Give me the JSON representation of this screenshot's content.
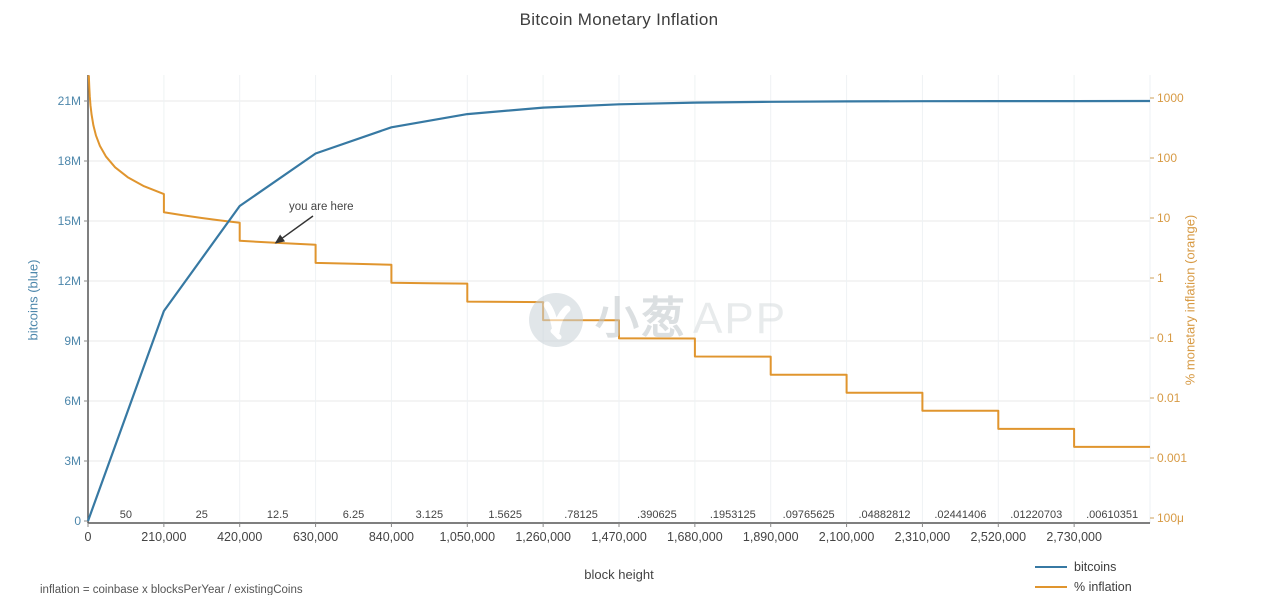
{
  "formula_note": "inflation = coinbase x blocksPerYear / existingCoins",
  "watermark": {
    "cn": "小葱",
    "latin": "APP"
  },
  "annotation": {
    "text": "you are here",
    "points_to_block": 520000,
    "points_to_pct": 3.86
  },
  "chart_data": {
    "type": "line",
    "title": "Bitcoin Monetary Inflation",
    "xlabel": "block height",
    "legend_position": "bottom-right",
    "grid": true,
    "halving_interval_blocks": 210000,
    "x_axis": {
      "range_blocks": [
        0,
        2940000
      ],
      "tick_blocks": [
        0,
        210000,
        420000,
        630000,
        840000,
        1050000,
        1260000,
        1470000,
        1680000,
        1890000,
        2100000,
        2310000,
        2520000,
        2730000
      ],
      "tick_labels": [
        "0",
        "210,000",
        "420,000",
        "630,000",
        "840,000",
        "1,050,000",
        "1,260,000",
        "1,470,000",
        "1,680,000",
        "1,890,000",
        "2,100,000",
        "2,310,000",
        "2,520,000",
        "2,730,000"
      ]
    },
    "era_reward_labels": [
      "50",
      "25",
      "12.5",
      "6.25",
      "3.125",
      "1.5625",
      ".78125",
      ".390625",
      ".1953125",
      ".09765625",
      ".04882812",
      ".02441406",
      ".01220703",
      ".00610351"
    ],
    "y_left": {
      "label": "bitcoins (blue)",
      "scale": "linear",
      "tick_values_millions": [
        0,
        3,
        6,
        9,
        12,
        15,
        18,
        21
      ],
      "tick_labels": [
        "0",
        "3M",
        "6M",
        "9M",
        "12M",
        "15M",
        "18M",
        "21M"
      ],
      "line_color": "#3779a3",
      "tick_label_color": "#4d87ab"
    },
    "y_right": {
      "label": "% monetary inflation (orange)",
      "scale": "log",
      "tick_values_percent": [
        1000,
        100,
        10,
        1,
        0.1,
        0.01,
        0.001,
        0.0001
      ],
      "tick_labels": [
        "1000",
        "100",
        "10",
        "1",
        "0.1",
        "0.01",
        "0.001",
        "100μ"
      ],
      "line_color": "#e0952e",
      "tick_label_color": "#d79a44"
    },
    "series": [
      {
        "name": "bitcoins",
        "axis": "left",
        "color": "#3779a3",
        "points_block_millionBTC": [
          [
            0,
            0
          ],
          [
            210000,
            10.5
          ],
          [
            420000,
            15.75
          ],
          [
            630000,
            18.375
          ],
          [
            840000,
            19.6875
          ],
          [
            1050000,
            20.34375
          ],
          [
            1260000,
            20.671875
          ],
          [
            1470000,
            20.8359375
          ],
          [
            1680000,
            20.91796875
          ],
          [
            1890000,
            20.958984
          ],
          [
            2100000,
            20.979492
          ],
          [
            2310000,
            20.989746
          ],
          [
            2520000,
            20.994873
          ],
          [
            2730000,
            20.997437
          ],
          [
            2940000,
            20.998718
          ]
        ]
      },
      {
        "name": "% inflation",
        "axis": "right",
        "color": "#e0952e",
        "eras_points_block_pct": [
          [
            [
              2200,
              2389
            ],
            [
              3500,
              1502
            ],
            [
              5000,
              1051
            ],
            [
              7000,
              751
            ],
            [
              10000,
              526
            ],
            [
              15000,
              350
            ],
            [
              22000,
              239
            ],
            [
              33000,
              159
            ],
            [
              50000,
              105.1
            ],
            [
              75000,
              70.1
            ],
            [
              110000,
              47.8
            ],
            [
              155000,
              33.9
            ],
            [
              210000,
              25.03
            ]
          ],
          [
            [
              210000,
              12.514
            ],
            [
              262500,
              11.12
            ],
            [
              315000,
              10.011
            ],
            [
              367500,
              9.1
            ],
            [
              420000,
              8.343
            ]
          ],
          [
            [
              420000,
              4.171
            ],
            [
              525000,
              3.851
            ],
            [
              630000,
              3.576
            ]
          ],
          [
            [
              630000,
              1.788
            ],
            [
              735000,
              1.727
            ],
            [
              840000,
              1.669
            ]
          ],
          [
            [
              840000,
              0.8343
            ],
            [
              945000,
              0.8205
            ],
            [
              1050000,
              0.8074
            ]
          ],
          [
            [
              1050000,
              0.4037
            ],
            [
              1260000,
              0.3973
            ]
          ],
          [
            [
              1260000,
              0.19864
            ],
            [
              1470000,
              0.19707
            ]
          ],
          [
            [
              1470000,
              0.098537
            ],
            [
              1680000,
              0.098151
            ]
          ],
          [
            [
              1680000,
              0.049079
            ],
            [
              1890000,
              0.048983
            ]
          ],
          [
            [
              1890000,
              0.02449
            ],
            [
              2100000,
              0.024466
            ]
          ],
          [
            [
              2100000,
              0.012233
            ],
            [
              2310000,
              0.012227
            ]
          ],
          [
            [
              2310000,
              0.0061158
            ],
            [
              2520000,
              0.0061143
            ]
          ],
          [
            [
              2520000,
              0.0030575
            ],
            [
              2730000,
              0.0030571
            ]
          ],
          [
            [
              2730000,
              0.0015287
            ],
            [
              2940000,
              0.0015286
            ]
          ]
        ]
      }
    ],
    "legend": [
      {
        "label": "bitcoins",
        "color": "#3779a3"
      },
      {
        "label": "% inflation",
        "color": "#e0952e"
      }
    ]
  }
}
